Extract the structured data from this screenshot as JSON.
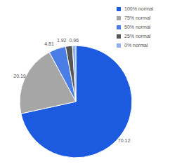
{
  "chart_data": {
    "type": "pie",
    "categories": [
      "100% normal",
      "75% normal",
      "50% normal",
      "25% normal",
      "0% normal"
    ],
    "values": [
      70.12,
      20.19,
      4.81,
      1.92,
      0.96
    ],
    "colors": [
      "#1c5ae0",
      "#a6a6a6",
      "#4a7de6",
      "#555555",
      "#8fb2ee"
    ],
    "data_labels": true,
    "legend": "top-right"
  }
}
